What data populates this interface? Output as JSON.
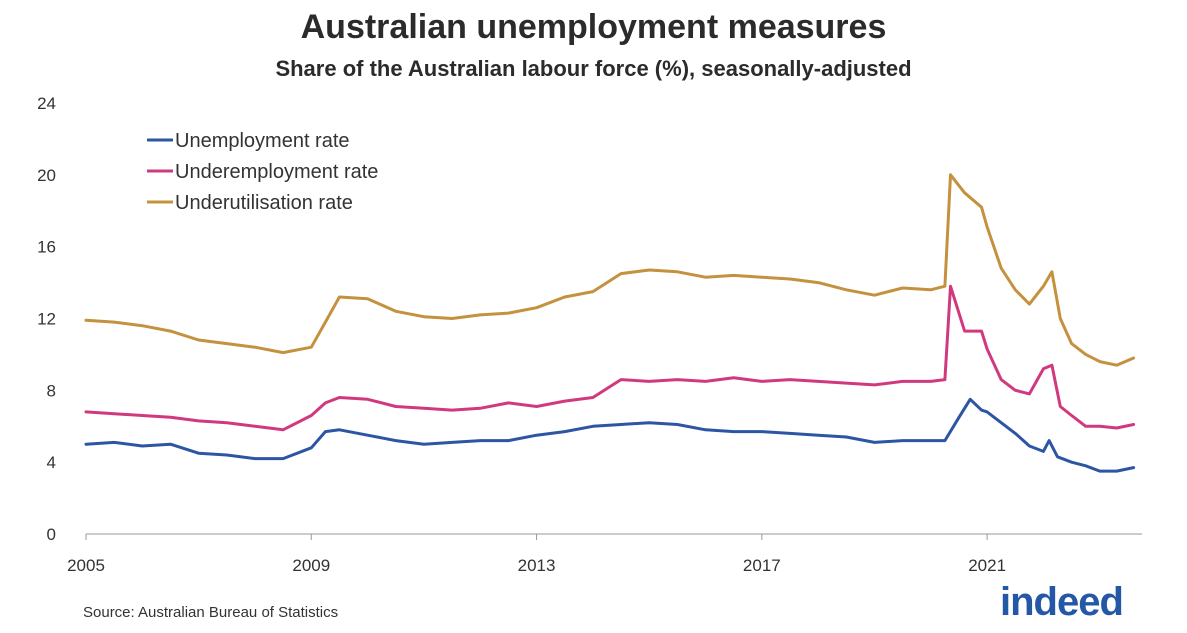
{
  "chart_data": {
    "type": "line",
    "title": "Australian unemployment measures",
    "subtitle": "Share of the Australian labour force (%), seasonally-adjusted",
    "xlabel": "",
    "ylabel": "",
    "xlim": [
      2005,
      2023.75
    ],
    "ylim": [
      0,
      24
    ],
    "x_ticks": [
      2005,
      2009,
      2013,
      2017,
      2021
    ],
    "x_tick_labels": [
      "2005",
      "2009",
      "2013",
      "2017",
      "2021"
    ],
    "y_ticks": [
      0,
      4,
      8,
      12,
      16,
      20,
      24
    ],
    "y_tick_labels": [
      "0",
      "4",
      "8",
      "12",
      "16",
      "20",
      "24"
    ],
    "grid": false,
    "legend_position": "top-left",
    "series": [
      {
        "name": "Unemployment rate",
        "color": "#2c56a4",
        "points": [
          [
            2005.0,
            5.0
          ],
          [
            2005.5,
            5.1
          ],
          [
            2006.0,
            4.9
          ],
          [
            2006.5,
            5.0
          ],
          [
            2007.0,
            4.5
          ],
          [
            2007.5,
            4.4
          ],
          [
            2008.0,
            4.2
          ],
          [
            2008.5,
            4.2
          ],
          [
            2009.0,
            4.8
          ],
          [
            2009.25,
            5.7
          ],
          [
            2009.5,
            5.8
          ],
          [
            2010.0,
            5.5
          ],
          [
            2010.5,
            5.2
          ],
          [
            2011.0,
            5.0
          ],
          [
            2011.5,
            5.1
          ],
          [
            2012.0,
            5.2
          ],
          [
            2012.5,
            5.2
          ],
          [
            2013.0,
            5.5
          ],
          [
            2013.5,
            5.7
          ],
          [
            2014.0,
            6.0
          ],
          [
            2014.5,
            6.1
          ],
          [
            2015.0,
            6.2
          ],
          [
            2015.5,
            6.1
          ],
          [
            2016.0,
            5.8
          ],
          [
            2016.5,
            5.7
          ],
          [
            2017.0,
            5.7
          ],
          [
            2017.5,
            5.6
          ],
          [
            2018.0,
            5.5
          ],
          [
            2018.5,
            5.4
          ],
          [
            2019.0,
            5.1
          ],
          [
            2019.5,
            5.2
          ],
          [
            2020.0,
            5.2
          ],
          [
            2020.25,
            5.2
          ],
          [
            2020.5,
            6.5
          ],
          [
            2020.7,
            7.5
          ],
          [
            2020.9,
            6.9
          ],
          [
            2021.0,
            6.8
          ],
          [
            2021.25,
            6.2
          ],
          [
            2021.5,
            5.6
          ],
          [
            2021.75,
            4.9
          ],
          [
            2022.0,
            4.6
          ],
          [
            2022.1,
            5.2
          ],
          [
            2022.25,
            4.3
          ],
          [
            2022.5,
            4.0
          ],
          [
            2022.75,
            3.8
          ],
          [
            2023.0,
            3.5
          ],
          [
            2023.3,
            3.5
          ],
          [
            2023.6,
            3.7
          ]
        ]
      },
      {
        "name": "Underemployment rate",
        "color": "#d1397f",
        "points": [
          [
            2005.0,
            6.8
          ],
          [
            2005.5,
            6.7
          ],
          [
            2006.0,
            6.6
          ],
          [
            2006.5,
            6.5
          ],
          [
            2007.0,
            6.3
          ],
          [
            2007.5,
            6.2
          ],
          [
            2008.0,
            6.0
          ],
          [
            2008.5,
            5.8
          ],
          [
            2009.0,
            6.6
          ],
          [
            2009.25,
            7.3
          ],
          [
            2009.5,
            7.6
          ],
          [
            2010.0,
            7.5
          ],
          [
            2010.5,
            7.1
          ],
          [
            2011.0,
            7.0
          ],
          [
            2011.5,
            6.9
          ],
          [
            2012.0,
            7.0
          ],
          [
            2012.5,
            7.3
          ],
          [
            2013.0,
            7.1
          ],
          [
            2013.5,
            7.4
          ],
          [
            2014.0,
            7.6
          ],
          [
            2014.5,
            8.6
          ],
          [
            2015.0,
            8.5
          ],
          [
            2015.5,
            8.6
          ],
          [
            2016.0,
            8.5
          ],
          [
            2016.5,
            8.7
          ],
          [
            2017.0,
            8.5
          ],
          [
            2017.5,
            8.6
          ],
          [
            2018.0,
            8.5
          ],
          [
            2018.5,
            8.4
          ],
          [
            2019.0,
            8.3
          ],
          [
            2019.5,
            8.5
          ],
          [
            2020.0,
            8.5
          ],
          [
            2020.25,
            8.6
          ],
          [
            2020.35,
            13.8
          ],
          [
            2020.6,
            11.3
          ],
          [
            2020.9,
            11.3
          ],
          [
            2021.0,
            10.3
          ],
          [
            2021.25,
            8.6
          ],
          [
            2021.5,
            8.0
          ],
          [
            2021.75,
            7.8
          ],
          [
            2022.0,
            9.2
          ],
          [
            2022.15,
            9.4
          ],
          [
            2022.3,
            7.1
          ],
          [
            2022.5,
            6.6
          ],
          [
            2022.75,
            6.0
          ],
          [
            2023.0,
            6.0
          ],
          [
            2023.3,
            5.9
          ],
          [
            2023.6,
            6.1
          ]
        ]
      },
      {
        "name": "Underutilisation rate",
        "color": "#c4913f",
        "points": [
          [
            2005.0,
            11.9
          ],
          [
            2005.5,
            11.8
          ],
          [
            2006.0,
            11.6
          ],
          [
            2006.5,
            11.3
          ],
          [
            2007.0,
            10.8
          ],
          [
            2007.5,
            10.6
          ],
          [
            2008.0,
            10.4
          ],
          [
            2008.5,
            10.1
          ],
          [
            2009.0,
            10.4
          ],
          [
            2009.25,
            11.8
          ],
          [
            2009.5,
            13.2
          ],
          [
            2010.0,
            13.1
          ],
          [
            2010.5,
            12.4
          ],
          [
            2011.0,
            12.1
          ],
          [
            2011.5,
            12.0
          ],
          [
            2012.0,
            12.2
          ],
          [
            2012.5,
            12.3
          ],
          [
            2013.0,
            12.6
          ],
          [
            2013.5,
            13.2
          ],
          [
            2014.0,
            13.5
          ],
          [
            2014.5,
            14.5
          ],
          [
            2015.0,
            14.7
          ],
          [
            2015.5,
            14.6
          ],
          [
            2016.0,
            14.3
          ],
          [
            2016.5,
            14.4
          ],
          [
            2017.0,
            14.3
          ],
          [
            2017.5,
            14.2
          ],
          [
            2018.0,
            14.0
          ],
          [
            2018.5,
            13.6
          ],
          [
            2019.0,
            13.3
          ],
          [
            2019.5,
            13.7
          ],
          [
            2020.0,
            13.6
          ],
          [
            2020.25,
            13.8
          ],
          [
            2020.35,
            20.0
          ],
          [
            2020.6,
            19.0
          ],
          [
            2020.9,
            18.2
          ],
          [
            2021.0,
            17.1
          ],
          [
            2021.25,
            14.8
          ],
          [
            2021.5,
            13.6
          ],
          [
            2021.75,
            12.8
          ],
          [
            2022.0,
            13.8
          ],
          [
            2022.15,
            14.6
          ],
          [
            2022.3,
            12.0
          ],
          [
            2022.5,
            10.6
          ],
          [
            2022.75,
            10.0
          ],
          [
            2023.0,
            9.6
          ],
          [
            2023.3,
            9.4
          ],
          [
            2023.6,
            9.8
          ]
        ]
      }
    ]
  },
  "source_text": "Source: Australian Bureau of Statistics",
  "brand": "indeed"
}
